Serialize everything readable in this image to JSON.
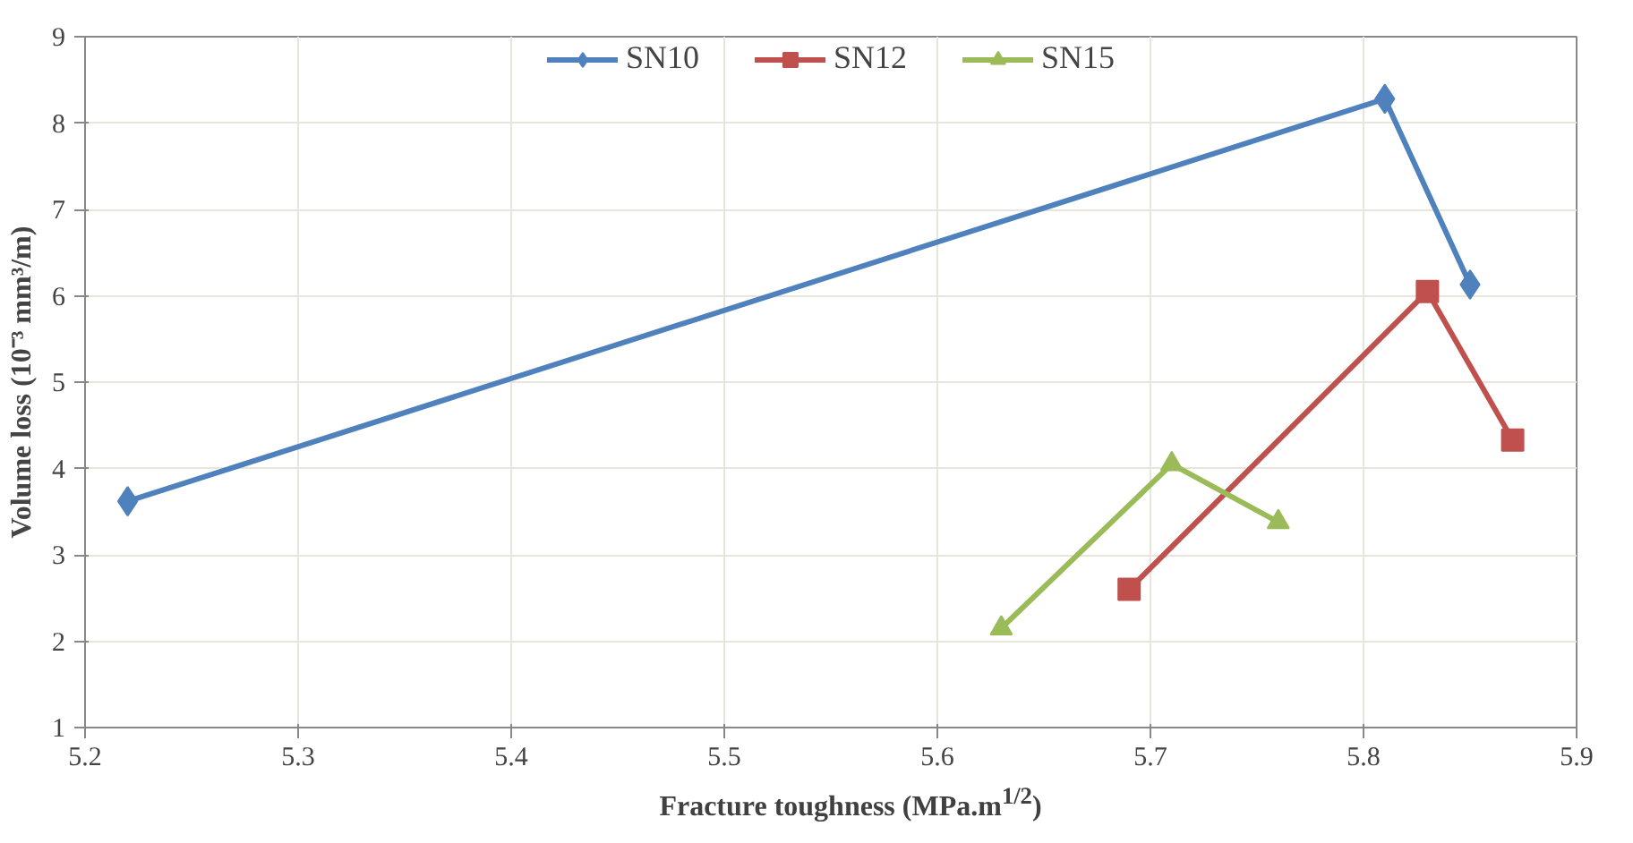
{
  "chart_data": {
    "type": "line",
    "xlabel": "Fracture toughness (MPa.m$^{1/2}$)",
    "ylabel": "Volume loss (10⁻³ mm³/m)",
    "xlim": [
      5.2,
      5.9
    ],
    "xticks": [
      5.2,
      5.3,
      5.4,
      5.5,
      5.6,
      5.7,
      5.8,
      5.9
    ],
    "ylim": [
      1,
      9
    ],
    "yticks": [
      1,
      2,
      3,
      4,
      5,
      6,
      7,
      8,
      9
    ],
    "grid": true,
    "legend": "top",
    "line_style": "solid",
    "series": [
      {
        "name": "SN10",
        "color": "#4f81bd",
        "marker": "diamond",
        "x": [
          5.22,
          5.81,
          5.85
        ],
        "values": [
          3.62,
          8.28,
          6.13
        ]
      },
      {
        "name": "SN12",
        "color": "#c0504d",
        "marker": "square",
        "x": [
          5.69,
          5.83,
          5.87
        ],
        "values": [
          2.6,
          6.05,
          4.33
        ]
      },
      {
        "name": "SN15",
        "color": "#9bbb59",
        "marker": "triangle",
        "x": [
          5.63,
          5.71,
          5.76
        ],
        "values": [
          2.15,
          4.05,
          3.38
        ]
      }
    ]
  }
}
